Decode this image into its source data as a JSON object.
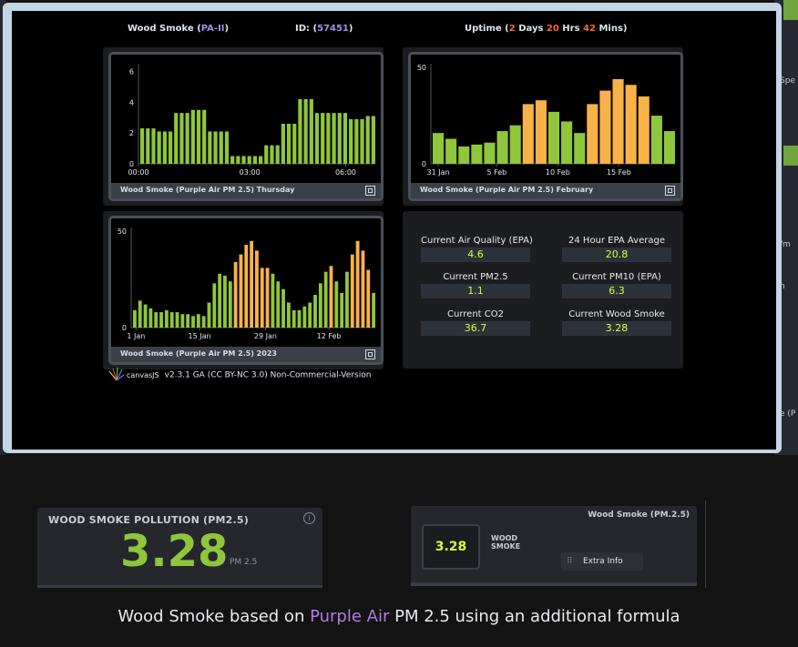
{
  "header": {
    "sensor_prefix": "Wood Smoke (",
    "sensor_id": "PA-II",
    "sensor_suffix": ")",
    "id_label": "ID: (",
    "id_value": "57451",
    "id_suffix": ")",
    "uptime_label": "Uptime (",
    "uptime_days": "2",
    "days_label": " Days ",
    "uptime_hrs": "20",
    "hrs_label": " Hrs ",
    "uptime_mins": "42",
    "mins_label": " Mins)"
  },
  "colors": {
    "green": "#8fc63c",
    "orange": "#f9b248",
    "value": "#d7ff39",
    "purple": "#9d8ee6",
    "accent_orange": "#f26c2b",
    "link": "#b27ae6"
  },
  "charts": {
    "thursday": {
      "caption": "Wood Smoke (Purple Air PM 2.5) Thursday"
    },
    "february": {
      "caption": "Wood Smoke (Purple Air PM 2.5) February"
    },
    "year": {
      "caption": "Wood Smoke (Purple Air PM 2.5) 2023"
    }
  },
  "chart_data": [
    {
      "type": "bar",
      "title": "Wood Smoke (Purple Air PM 2.5) Thursday",
      "x_tick_labels": [
        "00:00",
        "03:00",
        "06:00"
      ],
      "y_tick_labels": [
        "0",
        "2",
        "4",
        "6"
      ],
      "ylim": [
        0,
        6.5
      ],
      "grid": false,
      "values": [
        2.3,
        2.3,
        2.3,
        2.1,
        2.1,
        2.1,
        3.3,
        3.3,
        3.3,
        3.5,
        3.5,
        3.5,
        2.1,
        2.1,
        2.1,
        2.1,
        0.5,
        0.5,
        0.5,
        0.5,
        0.5,
        0.5,
        1.2,
        1.2,
        1.2,
        2.6,
        2.6,
        2.6,
        4.2,
        4.2,
        4.2,
        3.3,
        3.3,
        3.3,
        3.3,
        3.3,
        3.3,
        2.9,
        2.9,
        2.9,
        3.1,
        3.1
      ]
    },
    {
      "type": "bar",
      "title": "Wood Smoke (Purple Air PM 2.5) February",
      "x_tick_labels": [
        "31 Jan",
        "5 Feb",
        "10 Feb",
        "15 Feb"
      ],
      "y_tick_labels": [
        "0",
        "50"
      ],
      "ylim": [
        0,
        52
      ],
      "grid": false,
      "values": [
        16,
        13,
        9,
        10,
        11,
        17,
        20,
        31,
        33,
        27,
        22,
        16,
        31,
        38,
        44,
        41,
        35,
        25,
        17
      ]
    },
    {
      "type": "bar",
      "title": "Wood Smoke (Purple Air PM 2.5) 2023",
      "x_tick_labels": [
        "1 Jan",
        "15 Jan",
        "29 Jan",
        "12 Feb"
      ],
      "y_tick_labels": [
        "0",
        "50"
      ],
      "ylim": [
        0,
        52
      ],
      "grid": false,
      "values": [
        9,
        14,
        12,
        10,
        8,
        8,
        9,
        8,
        8,
        7,
        7,
        6,
        7,
        6,
        13,
        23,
        28,
        27,
        24,
        34,
        38,
        43,
        45,
        40,
        31,
        31,
        28,
        24,
        20,
        13,
        9,
        9,
        11,
        13,
        17,
        23,
        29,
        32,
        24,
        18,
        29,
        38,
        45,
        40,
        30,
        18
      ]
    }
  ],
  "stats": [
    {
      "label": "Current Air Quality (EPA)",
      "value": "4.6"
    },
    {
      "label": "24 Hour EPA Average",
      "value": "20.8"
    },
    {
      "label": "Current PM2.5",
      "value": "1.1"
    },
    {
      "label": "Current PM10 (EPA)",
      "value": "6.3"
    },
    {
      "label": "Current CO2",
      "value": "36.7"
    },
    {
      "label": "Current Wood Smoke",
      "value": "3.28"
    }
  ],
  "credits": {
    "brand": "canvasJS",
    "text": "v2.3.1 GA (CC BY-NC 3.0) Non-Commercial-Version"
  },
  "card_main": {
    "title": "WOOD SMOKE POLLUTION (PM2.5)",
    "value": "3.28",
    "unit": "PM 2.5",
    "info": "i"
  },
  "card_secondary": {
    "tag": "Wood Smoke (PM.2.5)",
    "value": "3.28",
    "label_line1": "WOOD",
    "label_line2": "SMOKE",
    "extra": "Extra Info"
  },
  "footer": {
    "pre": "Wood Smoke based on ",
    "link": "Purple Air",
    "post": "  PM 2.5  using an additional formula"
  },
  "background_fragments": [
    "Spe",
    "/m",
    "n",
    "e (P"
  ]
}
